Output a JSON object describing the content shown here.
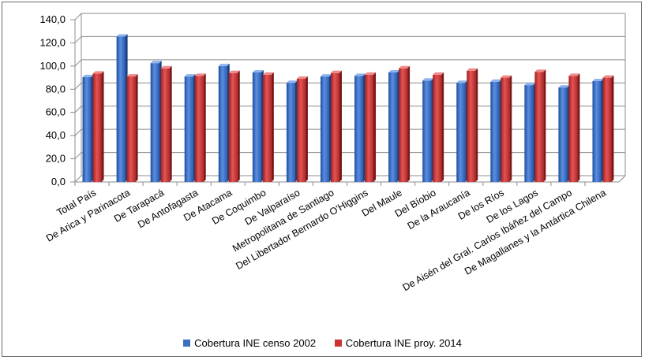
{
  "chart_data": {
    "type": "bar",
    "categories": [
      "Total País",
      "De Arica y Parinacota",
      "De Tarapacá",
      "De Antofagasta",
      "De Atacama",
      "De Coquimbo",
      "De Valparaíso",
      "Metropolitana de Santiago",
      "Del Libertador Bernardo O'Higgins",
      "Del Maule",
      "Del Bíobio",
      "De la Araucanía",
      "De los Ríos",
      "De los Lagos",
      "De Aisén del Gral. Carlos Ibáñez del Campo",
      "De Magallanes y la Antártica Chilena"
    ],
    "series": [
      {
        "name": "Cobertura INE censo 2002",
        "color": "#3a6fc4",
        "values": [
          90.5,
          125.5,
          102.5,
          91.0,
          100.0,
          94.5,
          85.5,
          91.0,
          91.5,
          94.5,
          87.5,
          85.5,
          86.5,
          83.5,
          81.5,
          87.0
        ]
      },
      {
        "name": "Cobertura INE proy. 2014",
        "color": "#cc3333",
        "values": [
          93.5,
          91.0,
          98.0,
          91.5,
          94.0,
          92.5,
          89.0,
          94.0,
          92.5,
          98.0,
          92.5,
          96.0,
          90.0,
          95.0,
          91.5,
          90.0
        ]
      }
    ],
    "yticks": [
      "0,0",
      "20,0",
      "40,0",
      "60,0",
      "80,0",
      "100,0",
      "120,0",
      "140,0"
    ],
    "ylim": [
      0,
      140
    ],
    "grid": true,
    "legend_position": "bottom",
    "title": "",
    "xlabel": "",
    "ylabel": ""
  }
}
